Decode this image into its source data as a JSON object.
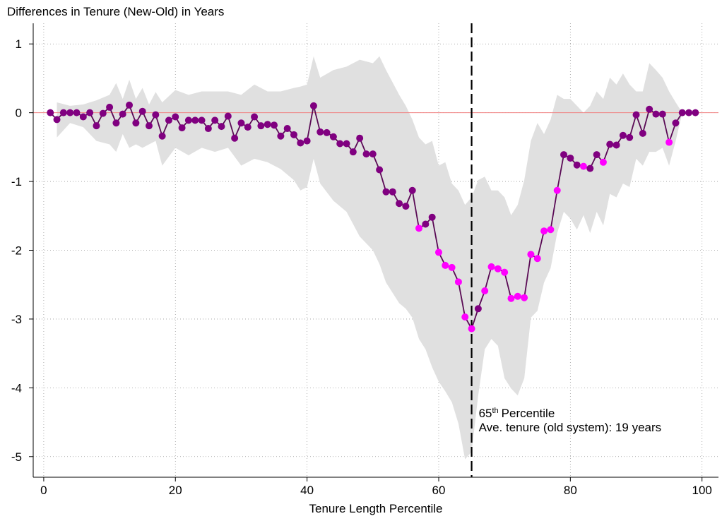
{
  "chart_data": {
    "type": "line",
    "title": "Differences in Tenure (New-Old) in Years",
    "xlabel": "Tenure Length Percentile",
    "x": [
      1,
      2,
      3,
      4,
      5,
      6,
      7,
      8,
      9,
      10,
      11,
      12,
      13,
      14,
      15,
      16,
      17,
      18,
      19,
      20,
      21,
      22,
      23,
      24,
      25,
      26,
      27,
      28,
      29,
      30,
      31,
      32,
      33,
      34,
      35,
      36,
      37,
      38,
      39,
      40,
      41,
      42,
      43,
      44,
      45,
      46,
      47,
      48,
      49,
      50,
      51,
      52,
      53,
      54,
      55,
      56,
      57,
      58,
      59,
      60,
      61,
      62,
      63,
      64,
      65,
      66,
      67,
      68,
      69,
      70,
      71,
      72,
      73,
      74,
      75,
      76,
      77,
      78,
      79,
      80,
      81,
      82,
      83,
      84,
      85,
      86,
      87,
      88,
      89,
      90,
      91,
      92,
      93,
      94,
      95,
      96,
      97,
      98,
      99
    ],
    "values": [
      0,
      -0.1,
      0,
      0,
      0,
      -0.06,
      0,
      -0.19,
      -0.01,
      0.08,
      -0.15,
      -0.02,
      0.11,
      -0.15,
      0.02,
      -0.19,
      -0.03,
      -0.34,
      -0.11,
      -0.06,
      -0.22,
      -0.11,
      -0.11,
      -0.11,
      -0.23,
      -0.11,
      -0.2,
      -0.05,
      -0.37,
      -0.15,
      -0.21,
      -0.06,
      -0.19,
      -0.17,
      -0.18,
      -0.34,
      -0.23,
      -0.32,
      -0.44,
      -0.41,
      0.1,
      -0.28,
      -0.29,
      -0.35,
      -0.45,
      -0.45,
      -0.57,
      -0.37,
      -0.6,
      -0.6,
      -0.83,
      -1.15,
      -1.15,
      -1.32,
      -1.36,
      -1.13,
      -1.68,
      -1.62,
      -1.52,
      -2.03,
      -2.22,
      -2.25,
      -2.46,
      -2.97,
      -3.14,
      -2.85,
      -2.59,
      -2.24,
      -2.27,
      -2.32,
      -2.7,
      -2.67,
      -2.69,
      -2.06,
      -2.12,
      -1.72,
      -1.7,
      -1.13,
      -0.61,
      -0.66,
      -0.76,
      -0.78,
      -0.81,
      -0.61,
      -0.72,
      -0.46,
      -0.47,
      -0.33,
      -0.36,
      -0.03,
      -0.3,
      0.05,
      -0.02,
      -0.02,
      -0.43,
      -0.15,
      0,
      0,
      0
    ],
    "line_color": "#5a0a55",
    "marker_color": "#800080",
    "highlight_color": "#ff00ff",
    "highlight_x": [
      57,
      60,
      61,
      62,
      63,
      64,
      65,
      67,
      68,
      69,
      70,
      71,
      72,
      73,
      74,
      75,
      76,
      77,
      78,
      82,
      85,
      95
    ],
    "band": {
      "color": "#e0e0e0",
      "x": [
        2,
        4,
        6,
        8,
        10,
        11,
        12,
        13,
        14,
        15,
        16,
        17,
        18,
        20,
        22,
        24,
        26,
        28,
        30,
        32,
        34,
        36,
        38,
        39,
        40,
        41,
        42,
        44,
        46,
        48,
        50,
        51,
        52,
        54,
        55,
        56,
        57,
        58,
        59,
        60,
        61,
        62,
        63,
        64,
        65,
        66,
        67,
        68,
        69,
        70,
        71,
        72,
        73,
        74,
        75,
        76,
        77,
        78,
        79,
        80,
        81,
        82,
        83,
        84,
        85,
        86,
        87,
        88,
        89,
        90,
        91,
        92,
        93,
        94,
        95,
        96,
        97
      ],
      "upper": [
        0.15,
        0.1,
        0.12,
        0.18,
        0.26,
        0.43,
        0.2,
        0.48,
        0.2,
        0.36,
        0.12,
        0.3,
        0.15,
        0.33,
        0.26,
        0.31,
        0.31,
        0.31,
        0.26,
        0.41,
        0.31,
        0.31,
        0.36,
        0.38,
        0.41,
        0.82,
        0.51,
        0.62,
        0.67,
        0.77,
        0.72,
        0.82,
        0.62,
        0.26,
        0.1,
        -0.1,
        -0.36,
        -0.46,
        -0.41,
        -0.77,
        -0.72,
        -1.03,
        -1.13,
        -1.34,
        -1.23,
        -0.98,
        -0.93,
        -1.13,
        -1.13,
        -1.23,
        -1.49,
        -1.34,
        -0.98,
        -0.41,
        -0.15,
        -0.31,
        -0.1,
        0.26,
        0.2,
        0.2,
        0.1,
        0,
        0.1,
        0.31,
        0.2,
        0.51,
        0.41,
        0.57,
        0.41,
        0.31,
        0.31,
        0.72,
        0.62,
        0.51,
        0.31,
        0.15,
        0
      ],
      "lower": [
        -0.36,
        -0.15,
        -0.21,
        -0.41,
        -0.46,
        -0.57,
        -0.31,
        -0.51,
        -0.46,
        -0.51,
        -0.46,
        -0.41,
        -0.77,
        -0.51,
        -0.62,
        -0.51,
        -0.57,
        -0.51,
        -0.77,
        -0.67,
        -0.72,
        -0.82,
        -0.98,
        -1.13,
        -1.08,
        -0.67,
        -1.03,
        -1.28,
        -1.44,
        -1.8,
        -2.0,
        -2.2,
        -2.47,
        -2.77,
        -2.85,
        -2.98,
        -3.29,
        -3.44,
        -3.7,
        -3.91,
        -4.05,
        -4.21,
        -4.52,
        -5.04,
        -4.93,
        -4.11,
        -3.44,
        -3.29,
        -3.39,
        -3.86,
        -4.01,
        -4.11,
        -3.86,
        -2.98,
        -2.88,
        -2.47,
        -2.26,
        -1.75,
        -1.44,
        -1.54,
        -1.7,
        -1.49,
        -1.75,
        -1.44,
        -1.64,
        -1.18,
        -1.23,
        -1.03,
        -1.08,
        -0.67,
        -0.77,
        -0.57,
        -0.57,
        -0.51,
        -0.77,
        -0.41,
        0
      ]
    },
    "ref_line": {
      "y": 0,
      "color": "#f08080"
    },
    "vline": {
      "x": 65,
      "color": "#000000",
      "label_number": "65",
      "label_sup": "th",
      "label_rest": "Percentile",
      "label_line2": "Ave. tenure (old system): 19 years"
    },
    "xlim": [
      -1.6,
      102.5
    ],
    "ylim": [
      -5.3,
      1.3
    ],
    "xticks": [
      0,
      20,
      40,
      60,
      80,
      100
    ],
    "yticks": [
      1,
      0,
      -1,
      -2,
      -3,
      -4,
      -5
    ],
    "grid": true
  }
}
